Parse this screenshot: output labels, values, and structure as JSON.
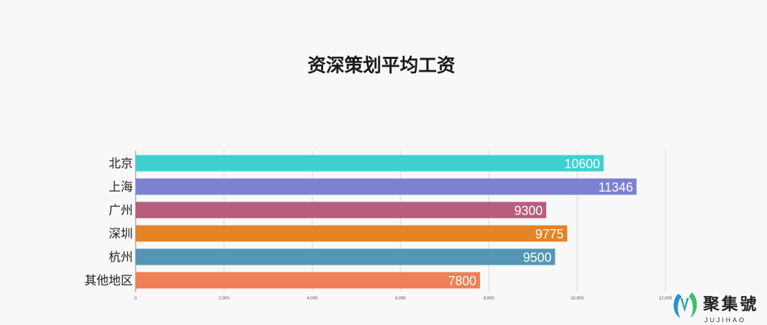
{
  "chart_data": {
    "type": "bar",
    "orientation": "horizontal",
    "title": "资深策划平均工资",
    "categories": [
      "北京",
      "上海",
      "广州",
      "深圳",
      "杭州",
      "其他地区"
    ],
    "values": [
      10600,
      11346,
      9300,
      9775,
      9500,
      7800
    ],
    "colors": [
      "#3fd1cf",
      "#7b80d0",
      "#b85e7c",
      "#e38426",
      "#5596b6",
      "#ef7f54"
    ],
    "xlim": [
      0,
      12000
    ],
    "xticks": [
      0,
      2000,
      4000,
      6000,
      8000,
      10000,
      12000
    ],
    "xtick_labels": [
      "0",
      "2,000",
      "4,000",
      "6,000",
      "8,000",
      "10,000",
      "12,000"
    ],
    "xlabel": "",
    "ylabel": "",
    "grid": true,
    "data_labels": true
  },
  "watermark": {
    "text_cn": "聚集號",
    "text_en": "JUJIHAO"
  }
}
